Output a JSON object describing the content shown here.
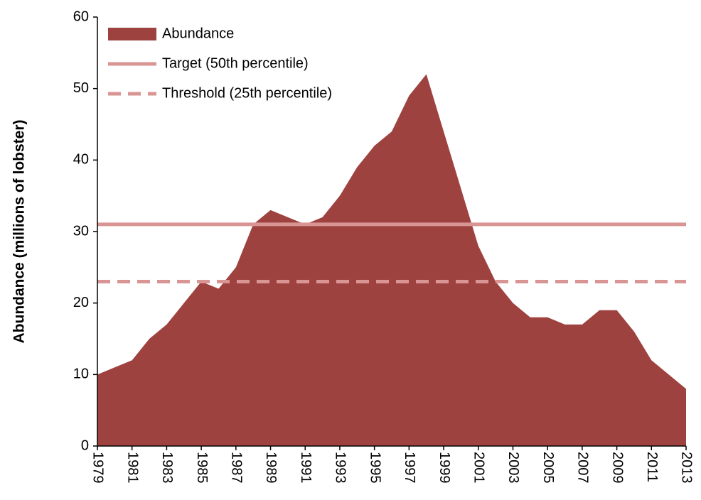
{
  "chart_data": {
    "type": "area",
    "y_label": "Abundance (millions of lobster)",
    "x": [
      1979,
      1980,
      1981,
      1982,
      1983,
      1984,
      1985,
      1986,
      1987,
      1988,
      1989,
      1990,
      1991,
      1992,
      1993,
      1994,
      1995,
      1996,
      1997,
      1998,
      1999,
      2000,
      2001,
      2002,
      2003,
      2004,
      2005,
      2006,
      2007,
      2008,
      2009,
      2010,
      2011,
      2012,
      2013
    ],
    "series": [
      {
        "name": "Abundance",
        "color": "#9e4240",
        "values": [
          10,
          11,
          12,
          15,
          17,
          20,
          23,
          22,
          25,
          31,
          33,
          32,
          31,
          32,
          35,
          39,
          42,
          44,
          49,
          52,
          44,
          36,
          28,
          23,
          20,
          18,
          18,
          17,
          17,
          19,
          19,
          16,
          12,
          10,
          8
        ]
      }
    ],
    "reference_lines": [
      {
        "name": "Target (50th percentile)",
        "value": 31,
        "color": "#d99594",
        "dashed": false
      },
      {
        "name": "Threshold (25th percentile)",
        "value": 23,
        "color": "#d99594",
        "dashed": true
      }
    ],
    "xlim": [
      1979,
      2013
    ],
    "xticks": [
      1979,
      1981,
      1983,
      1985,
      1987,
      1989,
      1991,
      1993,
      1995,
      1997,
      1999,
      2001,
      2003,
      2005,
      2007,
      2009,
      2011,
      2013
    ],
    "ylim": [
      0,
      60
    ],
    "yticks": [
      0,
      10,
      20,
      30,
      40,
      50,
      60
    ],
    "legend": "top-left"
  }
}
